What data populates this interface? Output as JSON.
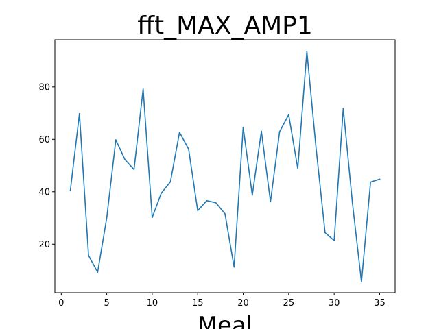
{
  "chart_data": {
    "type": "line",
    "title": "fft_MAX_AMP1",
    "xlabel": "Meal",
    "ylabel": "",
    "xlim": [
      -0.7,
      36.7
    ],
    "ylim": [
      1.5,
      98
    ],
    "xticks": [
      0,
      5,
      10,
      15,
      20,
      25,
      30,
      35
    ],
    "yticks": [
      20,
      40,
      60,
      80
    ],
    "grid": false,
    "legend": "none",
    "series": [
      {
        "color": "#1f77b4",
        "x": [
          1,
          2,
          3,
          4,
          5,
          6,
          7,
          8,
          9,
          10,
          11,
          12,
          13,
          14,
          15,
          16,
          17,
          18,
          19,
          20,
          21,
          22,
          23,
          24,
          25,
          26,
          27,
          28,
          29,
          30,
          31,
          32,
          33,
          34,
          35
        ],
        "values": [
          40.5,
          69.8,
          15.7,
          9.3,
          30.0,
          59.8,
          52.3,
          48.5,
          79.2,
          30.2,
          39.5,
          43.8,
          62.7,
          56.3,
          32.8,
          36.6,
          35.8,
          31.6,
          11.3,
          64.6,
          38.7,
          63.1,
          36.2,
          62.9,
          69.4,
          48.9,
          93.6,
          57.1,
          24.4,
          21.4,
          71.8,
          36.0,
          5.6,
          43.7,
          44.8
        ]
      }
    ]
  }
}
